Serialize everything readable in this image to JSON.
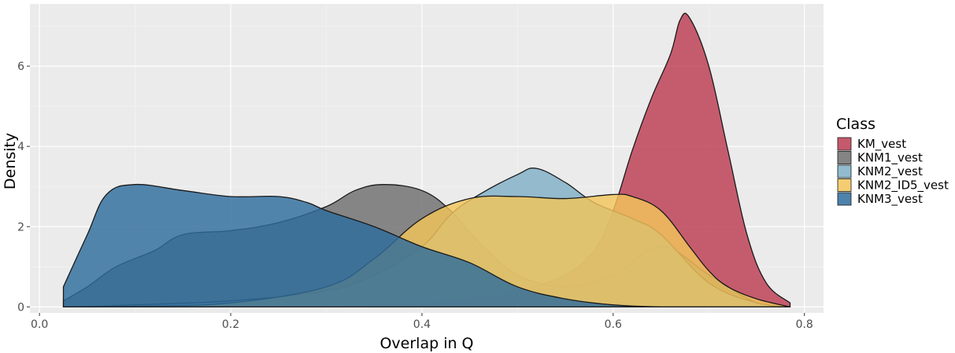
{
  "chart_data": {
    "type": "area",
    "xlabel": "Overlap in Q",
    "ylabel": "Density",
    "xlim": [
      -0.01,
      0.82
    ],
    "ylim": [
      -0.15,
      7.55
    ],
    "xticks": [
      0.0,
      0.2,
      0.4,
      0.6,
      0.8
    ],
    "xtick_labels": [
      "0.0",
      "0.2",
      "0.4",
      "0.6",
      "0.8"
    ],
    "yticks": [
      0,
      2,
      4,
      6
    ],
    "ytick_labels": [
      "0",
      "2",
      "4",
      "6"
    ],
    "grid": true,
    "legend": {
      "title": "Class",
      "placement": "right"
    },
    "series": [
      {
        "name": "KM_vest",
        "color": "#BC3C52",
        "x": [
          0.025,
          0.1,
          0.2,
          0.3,
          0.35,
          0.4,
          0.45,
          0.5,
          0.55,
          0.58,
          0.6,
          0.62,
          0.64,
          0.66,
          0.67,
          0.68,
          0.7,
          0.72,
          0.74,
          0.76,
          0.785
        ],
        "y": [
          0.0,
          0.0,
          0.0,
          0.02,
          0.05,
          0.1,
          0.2,
          0.4,
          0.8,
          1.4,
          2.4,
          3.9,
          5.2,
          6.3,
          7.15,
          7.2,
          6.0,
          3.9,
          1.8,
          0.6,
          0.1
        ]
      },
      {
        "name": "KNM1_vest",
        "color": "#6E6E6E",
        "x": [
          0.025,
          0.05,
          0.08,
          0.12,
          0.15,
          0.2,
          0.25,
          0.3,
          0.33,
          0.36,
          0.4,
          0.43,
          0.46,
          0.5,
          0.55,
          0.6,
          0.65,
          0.7,
          0.75,
          0.785
        ],
        "y": [
          0.15,
          0.5,
          1.0,
          1.4,
          1.8,
          1.9,
          2.1,
          2.5,
          2.9,
          3.05,
          2.9,
          2.4,
          1.6,
          0.8,
          0.5,
          0.8,
          1.5,
          0.8,
          0.1,
          0.0
        ]
      },
      {
        "name": "KNM2_vest",
        "color": "#7FAFC6",
        "x": [
          0.025,
          0.1,
          0.2,
          0.3,
          0.35,
          0.4,
          0.43,
          0.46,
          0.5,
          0.52,
          0.55,
          0.58,
          0.62,
          0.65,
          0.7,
          0.75,
          0.785
        ],
        "y": [
          0.0,
          0.05,
          0.15,
          0.4,
          0.8,
          1.5,
          2.3,
          2.8,
          3.3,
          3.45,
          3.1,
          2.6,
          2.2,
          1.8,
          0.6,
          0.1,
          0.0
        ]
      },
      {
        "name": "KNM2_ID5_vest",
        "color": "#F2C45A",
        "x": [
          0.025,
          0.1,
          0.2,
          0.3,
          0.35,
          0.4,
          0.45,
          0.5,
          0.55,
          0.6,
          0.62,
          0.65,
          0.68,
          0.7,
          0.72,
          0.75,
          0.785
        ],
        "y": [
          0.0,
          0.02,
          0.1,
          0.5,
          1.2,
          2.2,
          2.7,
          2.75,
          2.7,
          2.8,
          2.75,
          2.4,
          1.5,
          0.9,
          0.5,
          0.2,
          0.0
        ]
      },
      {
        "name": "KNM3_vest",
        "color": "#2E6C9C",
        "x": [
          0.025,
          0.05,
          0.07,
          0.1,
          0.15,
          0.2,
          0.25,
          0.28,
          0.3,
          0.35,
          0.4,
          0.45,
          0.5,
          0.55,
          0.6,
          0.65,
          0.7,
          0.785
        ],
        "y": [
          0.5,
          1.8,
          2.8,
          3.05,
          2.9,
          2.75,
          2.75,
          2.6,
          2.4,
          2.0,
          1.5,
          1.1,
          0.5,
          0.2,
          0.05,
          0.0,
          0.0,
          0.0
        ]
      }
    ]
  }
}
